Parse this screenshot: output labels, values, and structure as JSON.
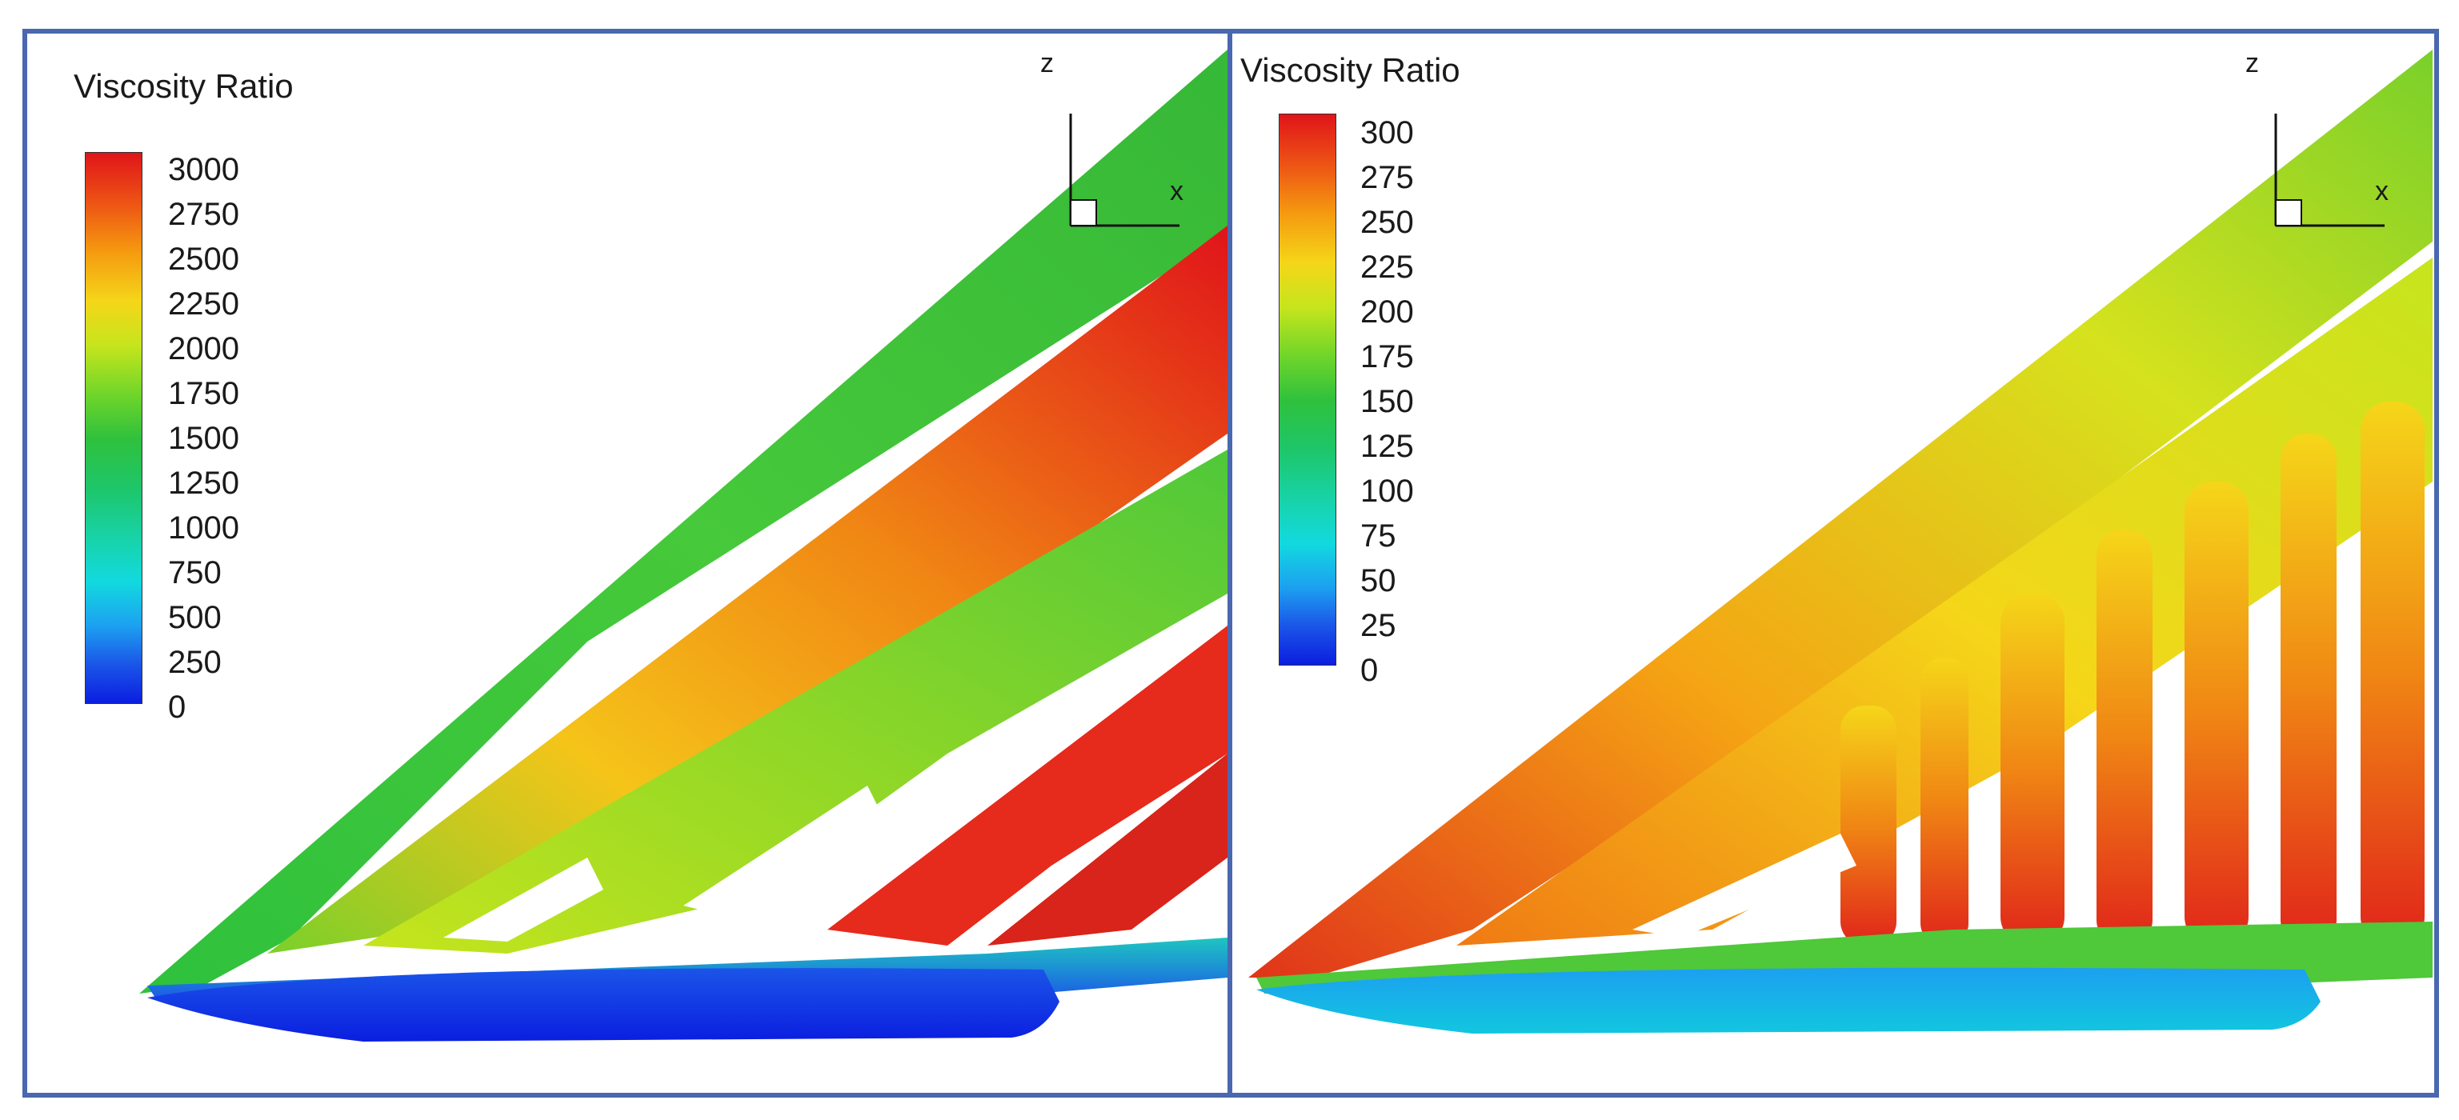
{
  "panels": [
    {
      "legend_title": "Viscosity Ratio",
      "ticks": [
        "3000",
        "2750",
        "2500",
        "2250",
        "2000",
        "1750",
        "1500",
        "1250",
        "1000",
        "750",
        "500",
        "250",
        "0"
      ],
      "axis_labels": {
        "vertical": "z",
        "horizontal": "x"
      }
    },
    {
      "legend_title": "Viscosity Ratio",
      "ticks": [
        "300",
        "275",
        "250",
        "225",
        "200",
        "175",
        "150",
        "125",
        "100",
        "75",
        "50",
        "25",
        "0"
      ],
      "axis_labels": {
        "vertical": "z",
        "horizontal": "x"
      }
    }
  ],
  "colors": {
    "border": "#4a68b0",
    "colormap": [
      "#e0141a",
      "#ee5a14",
      "#f59a10",
      "#f5d619",
      "#c6e51d",
      "#6fd52a",
      "#2fc13d",
      "#1ec66a",
      "#18d3a8",
      "#12d9df",
      "#1ca0f0",
      "#1b55e8",
      "#0b1ee0"
    ]
  }
}
